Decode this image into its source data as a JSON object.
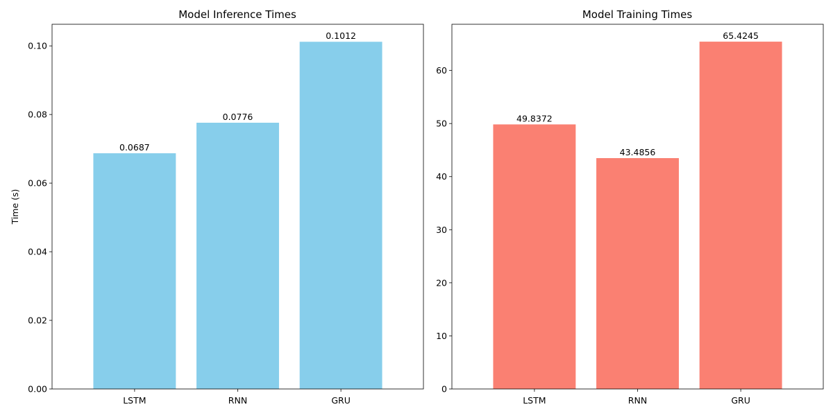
{
  "chart_data": [
    {
      "type": "bar",
      "title": "Model Inference Times",
      "xlabel": "",
      "ylabel": "Time (s)",
      "categories": [
        "LSTM",
        "RNN",
        "GRU"
      ],
      "values": [
        0.0687,
        0.0776,
        0.1012
      ],
      "value_labels": [
        "0.0687",
        "0.0776",
        "0.1012"
      ],
      "ylim": [
        0,
        0.1063
      ],
      "yticks": [
        0,
        0.02,
        0.04,
        0.06,
        0.08,
        0.1
      ],
      "ytick_labels": [
        "0.00",
        "0.02",
        "0.04",
        "0.06",
        "0.08",
        "0.10"
      ],
      "color": "#87CEEB",
      "grid": false
    },
    {
      "type": "bar",
      "title": "Model Training Times",
      "xlabel": "",
      "ylabel": "",
      "categories": [
        "LSTM",
        "RNN",
        "GRU"
      ],
      "values": [
        49.8372,
        43.4856,
        65.4245
      ],
      "value_labels": [
        "49.8372",
        "43.4856",
        "65.4245"
      ],
      "ylim": [
        0,
        68.7
      ],
      "yticks": [
        0,
        10,
        20,
        30,
        40,
        50,
        60
      ],
      "ytick_labels": [
        "0",
        "10",
        "20",
        "30",
        "40",
        "50",
        "60"
      ],
      "color": "#FA8072",
      "grid": false
    }
  ]
}
